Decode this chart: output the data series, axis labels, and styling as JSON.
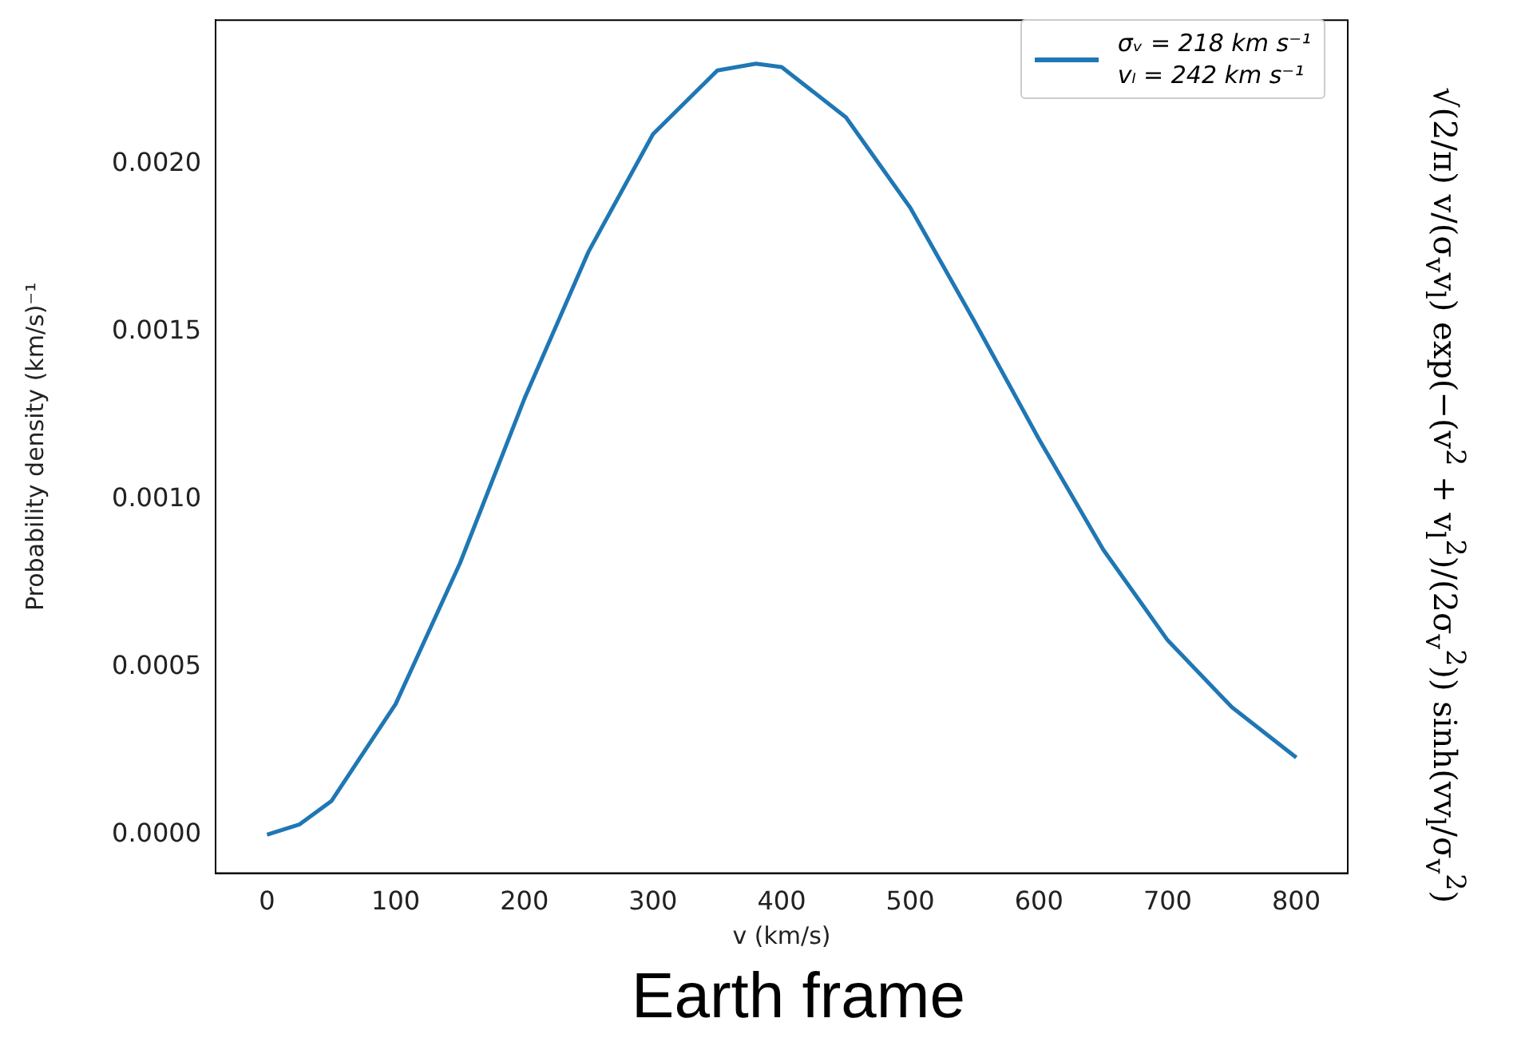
{
  "chart_data": {
    "type": "line",
    "xlabel": "v (km/s)",
    "ylabel": "Probability density (km/s)⁻¹",
    "x": [
      0,
      25,
      50,
      100,
      150,
      200,
      250,
      300,
      350,
      380,
      400,
      450,
      500,
      550,
      600,
      650,
      700,
      750,
      800
    ],
    "series": [
      {
        "name": "σᵥ = 218 km s⁻¹\nvₗ = 242 km s⁻¹",
        "color": "#1f77b4",
        "values": [
          0,
          3e-05,
          0.0001,
          0.00039,
          0.00081,
          0.0013,
          0.00174,
          0.00209,
          0.00228,
          0.0023,
          0.00229,
          0.00214,
          0.00187,
          0.00153,
          0.00118,
          0.00085,
          0.00058,
          0.00038,
          0.00023
        ]
      }
    ],
    "xlim": [
      -40,
      840
    ],
    "xticks": [
      0,
      100,
      200,
      300,
      400,
      500,
      600,
      700,
      800
    ],
    "ylim": [
      -0.000115,
      0.00243
    ],
    "yticks": [
      {
        "value": 0,
        "label": "0.0000"
      },
      {
        "value": 0.0005,
        "label": "0.0005"
      },
      {
        "value": 0.001,
        "label": "0.0010"
      },
      {
        "value": 0.0015,
        "label": "0.0015"
      },
      {
        "value": 0.002,
        "label": "0.0020"
      }
    ],
    "grid": false,
    "legend": "top right",
    "marker": "none",
    "line_style": "solid",
    "annotations": [
      "√(2/π) v/(σ$_{v}$v$_{l}$) exp(−(v$^{2}$ + v$_{l}$$^{2}$)/(2σ$_{v}$$^{2}$)) sinh(vv$_{l}$/σ$_{v}$$^{2}$)",
      "Earth frame"
    ]
  }
}
